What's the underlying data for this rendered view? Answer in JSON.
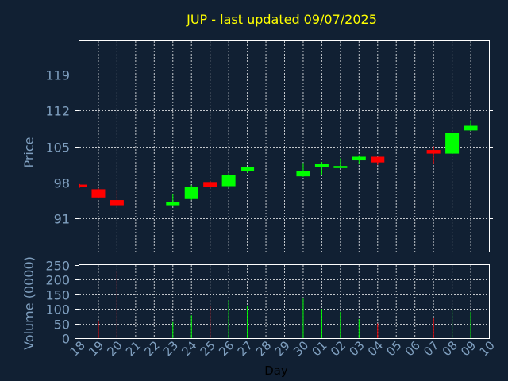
{
  "colors": {
    "background": "#112033",
    "title": "#ffff00",
    "axis_text": "#7f9fbf",
    "frame": "#ffffff",
    "grid": "#ffffff",
    "up": "#00ff00",
    "down": "#ff0000",
    "xlabel": "#000000"
  },
  "chart_data": {
    "type": "candlestick",
    "title": "JUP - last updated 09/07/2025",
    "price_panel": {
      "ylabel": "Price",
      "ylim": [
        84.6,
        125.4
      ],
      "yticks": [
        91,
        98,
        105,
        112,
        119
      ],
      "grid": true
    },
    "volume_panel": {
      "ylabel": "Volume (0000)",
      "ylim": [
        0,
        250
      ],
      "yticks": [
        0,
        50,
        100,
        150,
        200,
        250
      ],
      "grid": true
    },
    "xlabel": "Day",
    "x_ticks": [
      "18",
      "19",
      "20",
      "21",
      "22",
      "23",
      "24",
      "25",
      "26",
      "27",
      "28",
      "29",
      "30",
      "01",
      "02",
      "03",
      "04",
      "05",
      "06",
      "07",
      "08",
      "09",
      "10"
    ],
    "candles": [
      {
        "x": 0,
        "open": 97.6,
        "close": 97.1,
        "high": 97.7,
        "low": 97.0,
        "volume": 0
      },
      {
        "x": 1,
        "open": 96.7,
        "close": 95.1,
        "high": 96.9,
        "low": 94.9,
        "volume": 60
      },
      {
        "x": 2,
        "open": 94.6,
        "close": 93.6,
        "high": 96.6,
        "low": 93.4,
        "volume": 230
      },
      {
        "x": 5,
        "open": 93.6,
        "close": 94.2,
        "high": 95.8,
        "low": 93.5,
        "volume": 55
      },
      {
        "x": 6,
        "open": 94.8,
        "close": 97.2,
        "high": 97.5,
        "low": 94.6,
        "volume": 78
      },
      {
        "x": 7,
        "open": 98.1,
        "close": 97.1,
        "high": 98.4,
        "low": 96.9,
        "volume": 110
      },
      {
        "x": 8,
        "open": 97.3,
        "close": 99.4,
        "high": 99.8,
        "low": 97.0,
        "volume": 130
      },
      {
        "x": 9,
        "open": 100.2,
        "close": 101.0,
        "high": 101.1,
        "low": 99.9,
        "volume": 110
      },
      {
        "x": 12,
        "open": 99.2,
        "close": 100.3,
        "high": 101.8,
        "low": 99.1,
        "volume": 135
      },
      {
        "x": 13,
        "open": 101.0,
        "close": 101.6,
        "high": 102.0,
        "low": 99.4,
        "volume": 100
      },
      {
        "x": 14,
        "open": 100.8,
        "close": 101.2,
        "high": 102.7,
        "low": 100.8,
        "volume": 90
      },
      {
        "x": 15,
        "open": 102.3,
        "close": 103.0,
        "high": 103.3,
        "low": 101.7,
        "volume": 65
      },
      {
        "x": 16,
        "open": 103.0,
        "close": 101.9,
        "high": 103.0,
        "low": 101.4,
        "volume": 50
      },
      {
        "x": 19,
        "open": 104.3,
        "close": 103.6,
        "high": 105.0,
        "low": 101.7,
        "volume": 70
      },
      {
        "x": 20,
        "open": 103.6,
        "close": 107.6,
        "high": 107.6,
        "low": 103.5,
        "volume": 100
      },
      {
        "x": 21,
        "open": 108.1,
        "close": 109.0,
        "high": 110.1,
        "low": 108.0,
        "volume": 90
      }
    ]
  }
}
